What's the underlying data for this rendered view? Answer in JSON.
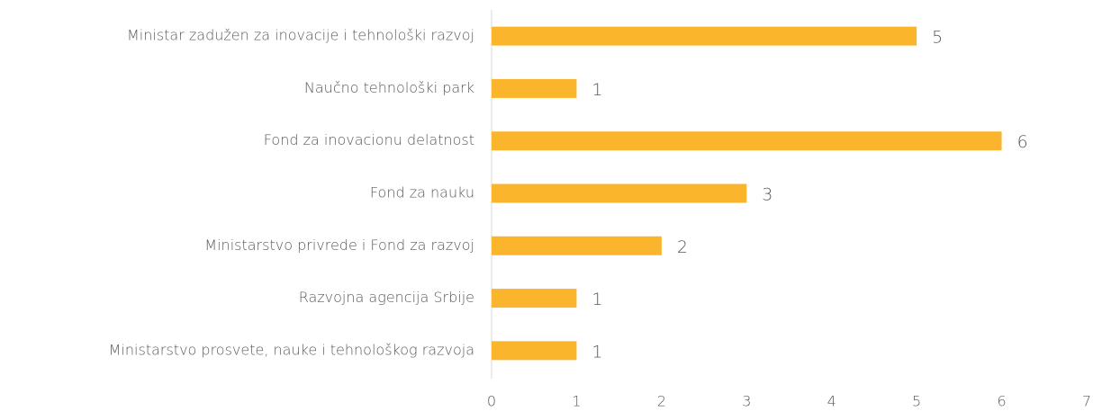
{
  "chart_data": {
    "type": "bar",
    "orientation": "horizontal",
    "categories": [
      "Ministar zadužen za inovacije i tehnološki razvoj",
      "Naučno tehnološki park",
      "Fond za inovacionu delatnost",
      "Fond za nauku",
      "Ministarstvo privrede i Fond za razvoj",
      "Razvojna agencija Srbije",
      "Ministarstvo prosvete, nauke i tehnološkog razvoja"
    ],
    "values": [
      5,
      1,
      6,
      3,
      2,
      1,
      1
    ],
    "color": "#fbb52d",
    "xlim": [
      0,
      7
    ],
    "xticks": [
      0,
      1,
      2,
      3,
      4,
      5,
      6,
      7
    ],
    "grid": false
  }
}
